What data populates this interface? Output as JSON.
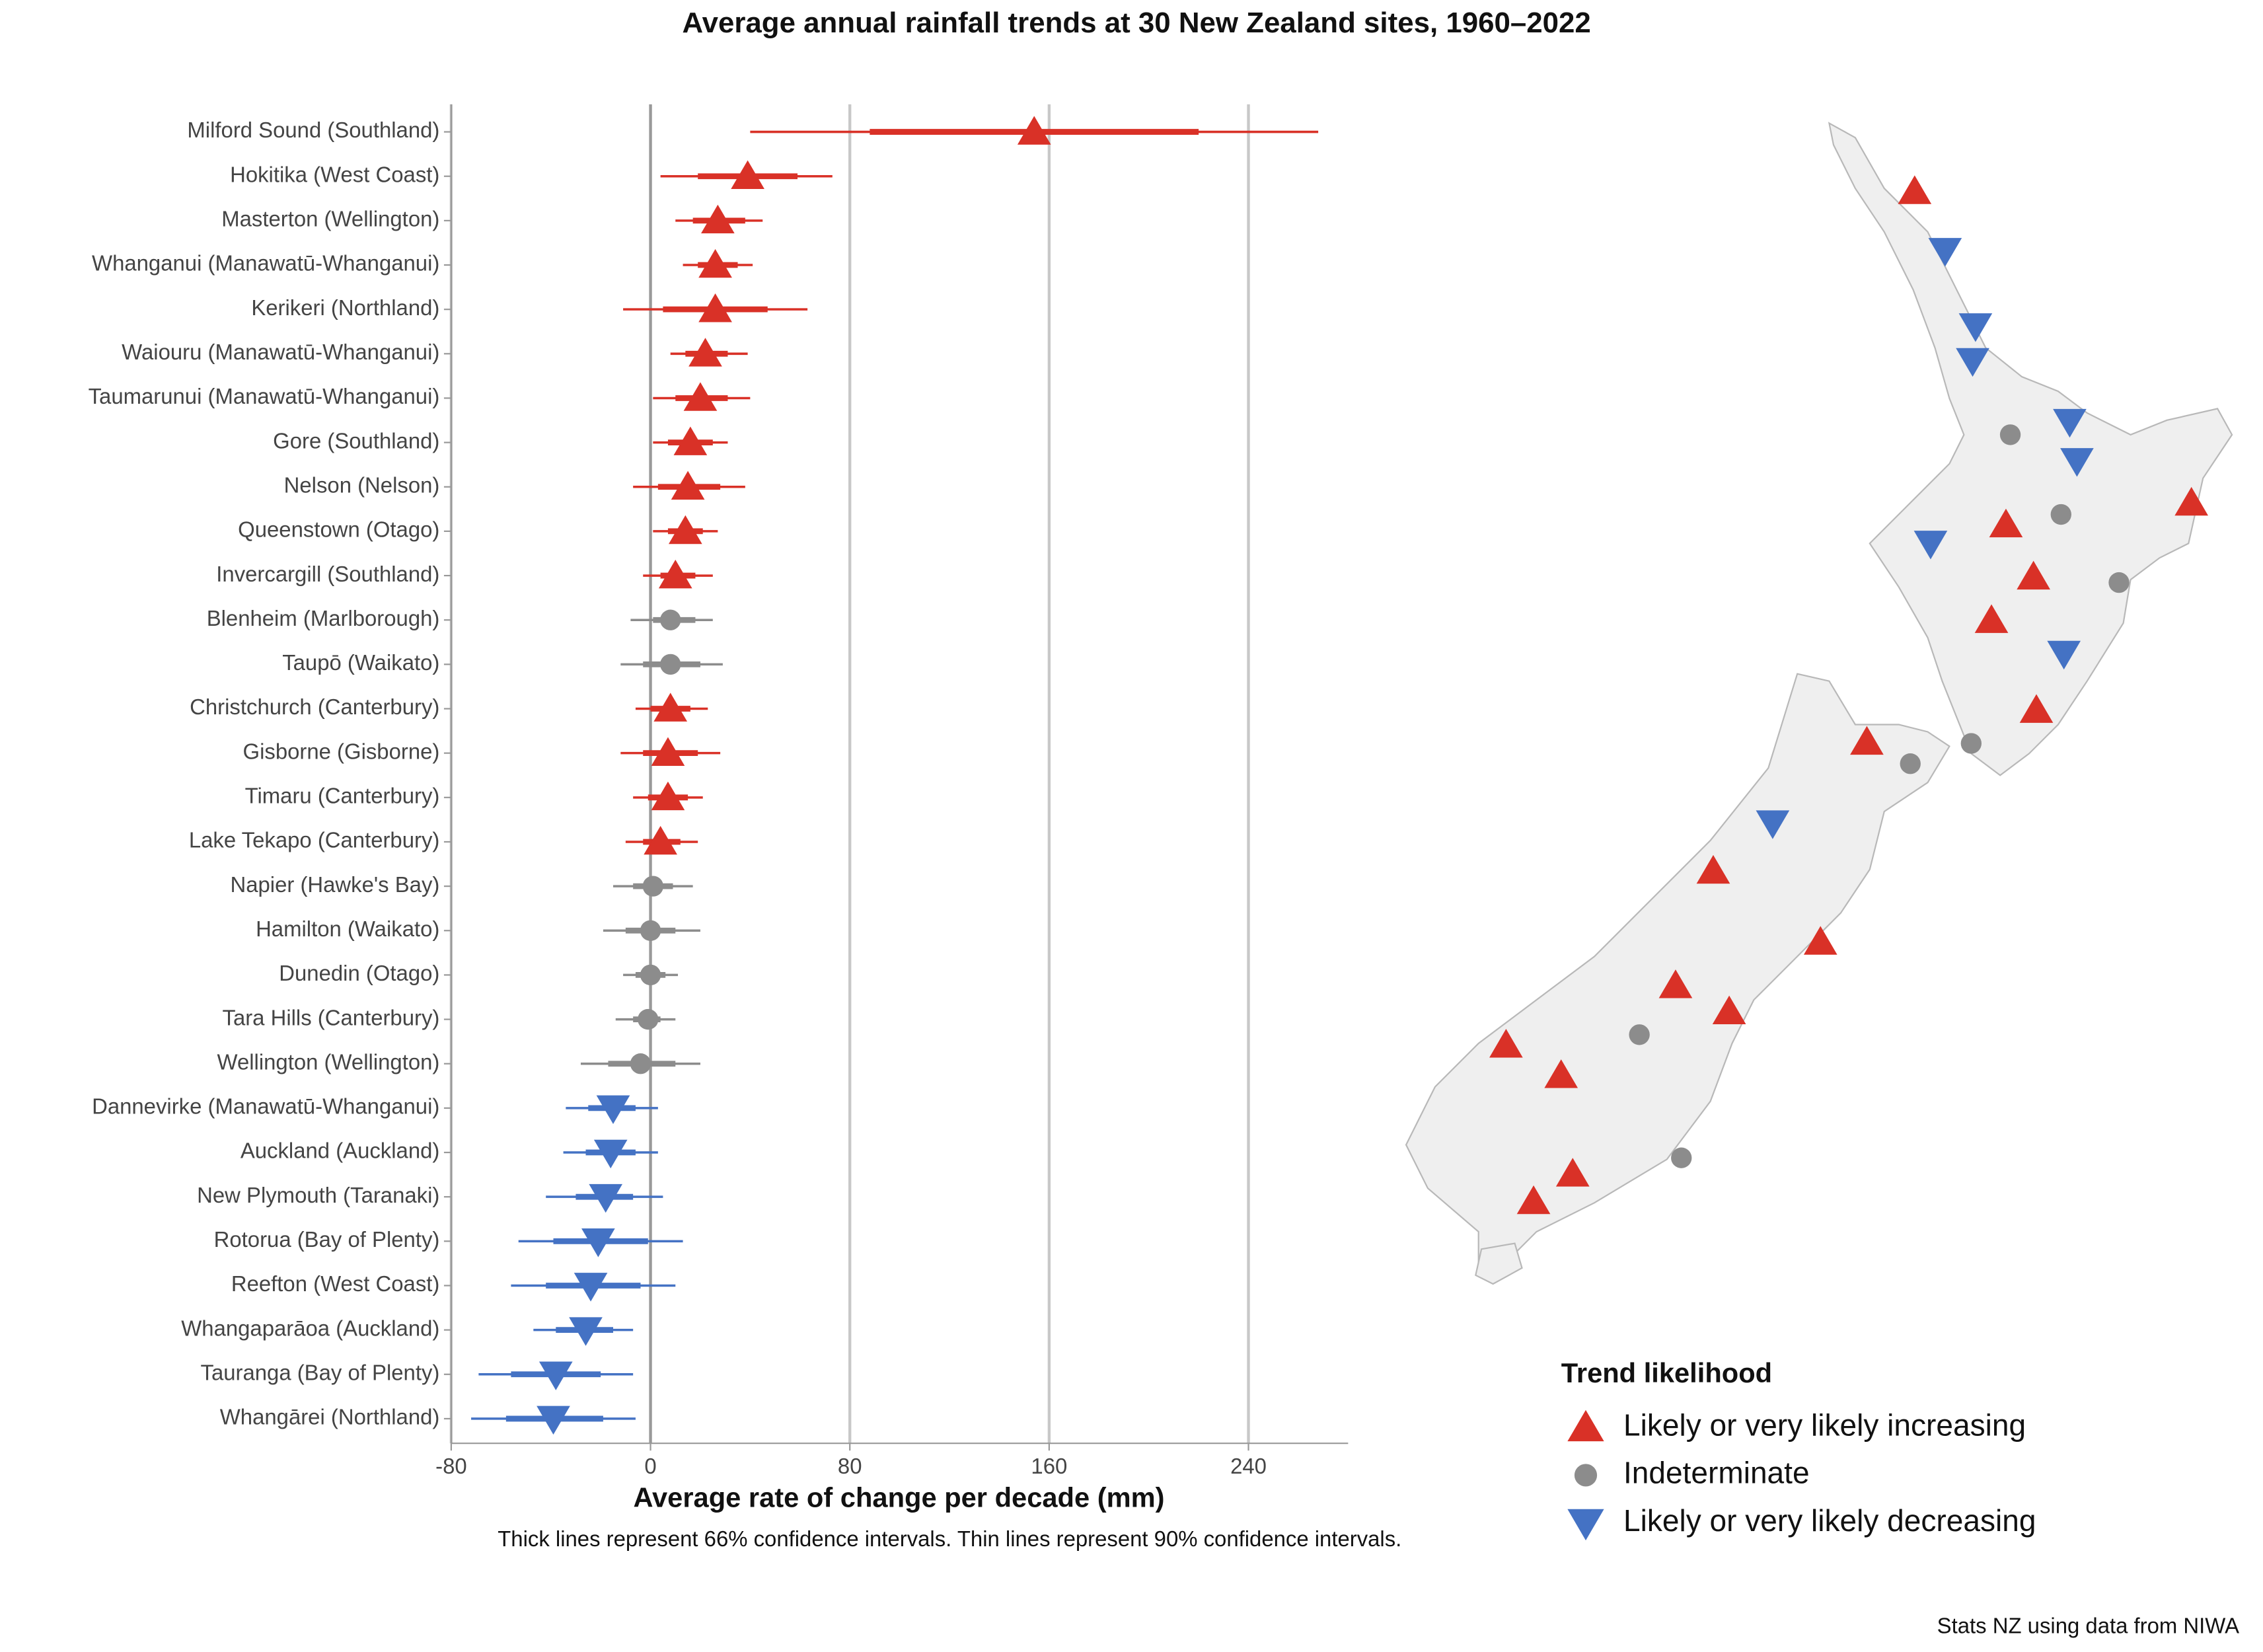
{
  "chart_data": {
    "type": "dot-interval",
    "title": "Average annual rainfall trends at 30 New Zealand sites, 1960–2022",
    "xlabel": "Average rate of change per decade (mm)",
    "note": "Thick lines represent 66% confidence intervals. Thin lines represent 90% confidence intervals.",
    "source": "Stats NZ using data from NIWA",
    "categories": [
      "Milford Sound (Southland)",
      "Hokitika (West Coast)",
      "Masterton (Wellington)",
      "Whanganui (Manawatū-Whanganui)",
      "Kerikeri (Northland)",
      "Waiouru (Manawatū-Whanganui)",
      "Taumarunui (Manawatū-Whanganui)",
      "Gore (Southland)",
      "Nelson (Nelson)",
      "Queenstown (Otago)",
      "Invercargill (Southland)",
      "Blenheim (Marlborough)",
      "Taupō (Waikato)",
      "Christchurch (Canterbury)",
      "Gisborne (Gisborne)",
      "Timaru (Canterbury)",
      "Lake Tekapo (Canterbury)",
      "Napier (Hawke's Bay)",
      "Hamilton (Waikato)",
      "Dunedin (Otago)",
      "Tara Hills (Canterbury)",
      "Wellington (Wellington)",
      "Dannevirke (Manawatū-Whanganui)",
      "Auckland (Auckland)",
      "New Plymouth (Taranaki)",
      "Rotorua (Bay of Plenty)",
      "Reefton (West Coast)",
      "Whangaparāoa (Auckland)",
      "Tauranga (Bay of Plenty)",
      "Whangārei (Northland)"
    ],
    "estimates": [
      154,
      39,
      27,
      26,
      26,
      22,
      20,
      16,
      15,
      14,
      10,
      8,
      8,
      8,
      7,
      7,
      4,
      1,
      0,
      0,
      -1,
      -4,
      -15,
      -16,
      -18,
      -21,
      -24,
      -26,
      -38,
      -39
    ],
    "ci66_low": [
      88,
      19,
      17,
      19,
      5,
      14,
      10,
      7,
      3,
      7,
      4,
      1,
      -3,
      0,
      -3,
      -1,
      -3,
      -7,
      -10,
      -6,
      -7,
      -17,
      -25,
      -26,
      -30,
      -39,
      -42,
      -38,
      -56,
      -58
    ],
    "ci66_high": [
      220,
      59,
      38,
      35,
      47,
      31,
      31,
      25,
      28,
      21,
      18,
      18,
      20,
      16,
      19,
      15,
      12,
      9,
      10,
      6,
      4,
      10,
      -6,
      -6,
      -7,
      -1,
      -4,
      -15,
      -20,
      -19
    ],
    "ci90_low": [
      40,
      4,
      10,
      13,
      -11,
      8,
      1,
      1,
      -7,
      1,
      -3,
      -8,
      -12,
      -6,
      -12,
      -7,
      -10,
      -15,
      -19,
      -11,
      -14,
      -28,
      -34,
      -35,
      -42,
      -53,
      -56,
      -47,
      -69,
      -72
    ],
    "ci90_high": [
      268,
      73,
      45,
      41,
      63,
      39,
      40,
      31,
      38,
      27,
      25,
      25,
      29,
      23,
      28,
      21,
      19,
      17,
      20,
      11,
      10,
      20,
      3,
      3,
      5,
      13,
      10,
      -7,
      -7,
      -6
    ],
    "trend": [
      0,
      0,
      0,
      0,
      0,
      0,
      0,
      0,
      0,
      0,
      0,
      1,
      1,
      0,
      0,
      0,
      0,
      1,
      1,
      1,
      1,
      1,
      2,
      2,
      2,
      2,
      2,
      2,
      2,
      2
    ],
    "legend": {
      "title": "Trend likelihood",
      "items": [
        {
          "name": "Likely or very likely increasing",
          "color": "#d93127",
          "shape": "triangle-up"
        },
        {
          "name": "Indeterminate",
          "color": "#8c8c8c",
          "shape": "circle"
        },
        {
          "name": "Likely or very likely decreasing",
          "color": "#4472c4",
          "shape": "triangle-down"
        }
      ]
    },
    "xlim": [
      -80,
      280
    ],
    "xticks": [
      -80,
      0,
      80,
      160,
      240
    ],
    "grid": true
  }
}
